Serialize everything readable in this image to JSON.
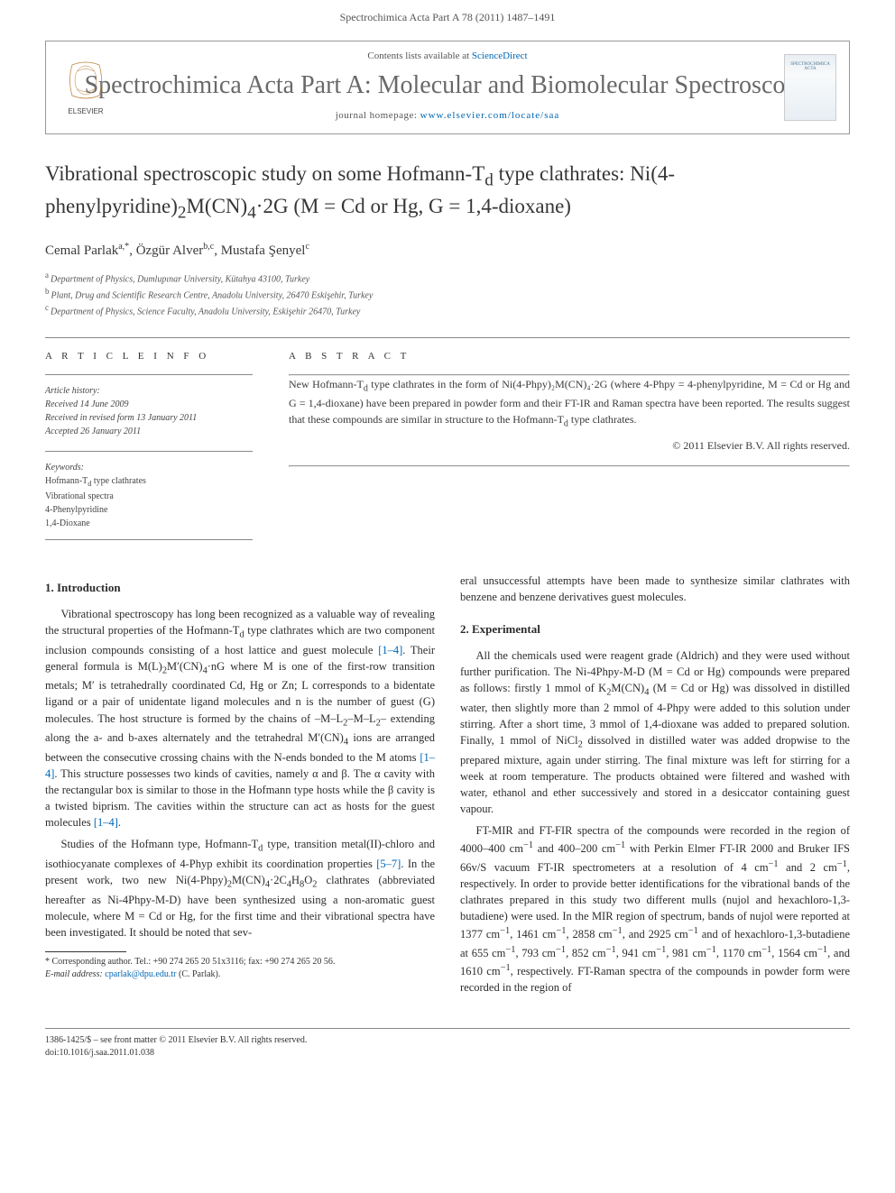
{
  "header": {
    "running_head": "Spectrochimica Acta Part A 78 (2011) 1487–1491"
  },
  "masthead": {
    "contents_line_prefix": "Contents lists available at ",
    "contents_link": "ScienceDirect",
    "journal_title": "Spectrochimica Acta Part A: Molecular and Biomolecular Spectroscopy",
    "homepage_prefix": "journal homepage: ",
    "homepage_url": "www.elsevier.com/locate/saa",
    "elsevier_label": "ELSEVIER",
    "cover_label": "SPECTROCHIMICA ACTA"
  },
  "article": {
    "title_html": "Vibrational spectroscopic study on some Hofmann-T<sub>d</sub> type clathrates: Ni(4-phenylpyridine)<sub>2</sub>M(CN)<sub>4</sub>·2G (M = Cd or Hg, G = 1,4-dioxane)",
    "authors": [
      {
        "name": "Cemal Parlak",
        "aff": "a,*"
      },
      {
        "name": "Özgür Alver",
        "aff": "b,c"
      },
      {
        "name": "Mustafa Şenyel",
        "aff": "c"
      }
    ],
    "affiliations": [
      {
        "label": "a",
        "text": "Department of Physics, Dumlupınar University, Kütahya 43100, Turkey"
      },
      {
        "label": "b",
        "text": "Plant, Drug and Scientific Research Centre, Anadolu University, 26470 Eskişehir, Turkey"
      },
      {
        "label": "c",
        "text": "Department of Physics, Science Faculty, Anadolu University, Eskişehir 26470, Turkey"
      }
    ]
  },
  "info": {
    "article_info_heading": "A R T I C L E   I N F O",
    "history_heading": "Article history:",
    "history": {
      "received": "Received 14 June 2009",
      "revised": "Received in revised form 13 January 2011",
      "accepted": "Accepted 26 January 2011"
    },
    "keywords_heading": "Keywords:",
    "keywords": [
      "Hofmann-T_d type clathrates",
      "Vibrational spectra",
      "4-Phenylpyridine",
      "1,4-Dioxane"
    ]
  },
  "abstract": {
    "heading": "A B S T R A C T",
    "text": "New Hofmann-T_d type clathrates in the form of Ni(4-Phpy)₂M(CN)₄·2G (where 4-Phpy = 4-phenylpyridine, M = Cd or Hg and G = 1,4-dioxane) have been prepared in powder form and their FT-IR and Raman spectra have been reported. The results suggest that these compounds are similar in structure to the Hofmann-T_d type clathrates.",
    "copyright": "© 2011 Elsevier B.V. All rights reserved."
  },
  "sections": {
    "intro_heading": "1.  Introduction",
    "intro_p1": "Vibrational spectroscopy has long been recognized as a valuable way of revealing the structural properties of the Hofmann-T_d type clathrates which are two component inclusion compounds consisting of a host lattice and guest molecule [1–4]. Their general formula is M(L)₂M′(CN)₄·nG where M is one of the first-row transition metals; M′ is tetrahedrally coordinated Cd, Hg or Zn; L corresponds to a bidentate ligand or a pair of unidentate ligand molecules and n is the number of guest (G) molecules. The host structure is formed by the chains of –M–L₂–M–L₂– extending along the a- and b-axes alternately and the tetrahedral M′(CN)₄ ions are arranged between the consecutive crossing chains with the N-ends bonded to the M atoms [1–4]. This structure possesses two kinds of cavities, namely α and β. The α cavity with the rectangular box is similar to those in the Hofmann type hosts while the β cavity is a twisted biprism. The cavities within the structure can act as hosts for the guest molecules [1–4].",
    "intro_p2": "Studies of the Hofmann type, Hofmann-T_d type, transition metal(II)-chloro and isothiocyanate complexes of 4-Phyp exhibit its coordination properties [5–7]. In the present work, two new Ni(4-Phpy)₂M(CN)₄·2C₄H₈O₂ clathrates (abbreviated hereafter as Ni-4Phpy-M-D) have been synthesized using a non-aromatic guest molecule, where M = Cd or Hg, for the first time and their vibrational spectra have been investigated. It should be noted that sev-",
    "col2_lead": "eral unsuccessful attempts have been made to synthesize similar clathrates with benzene and benzene derivatives guest molecules.",
    "exp_heading": "2.  Experimental",
    "exp_p1": "All the chemicals used were reagent grade (Aldrich) and they were used without further purification. The Ni-4Phpy-M-D (M = Cd or Hg) compounds were prepared as follows: firstly 1 mmol of K₂M(CN)₄ (M = Cd or Hg) was dissolved in distilled water, then slightly more than 2 mmol of 4-Phpy were added to this solution under stirring. After a short time, 3 mmol of 1,4-dioxane was added to prepared solution. Finally, 1 mmol of NiCl₂ dissolved in distilled water was added dropwise to the prepared mixture, again under stirring. The final mixture was left for stirring for a week at room temperature. The products obtained were filtered and washed with water, ethanol and ether successively and stored in a desiccator containing guest vapour.",
    "exp_p2": "FT-MIR and FT-FIR spectra of the compounds were recorded in the region of 4000–400 cm⁻¹ and 400–200 cm⁻¹ with Perkin Elmer FT-IR 2000 and Bruker IFS 66v/S vacuum FT-IR spectrometers at a resolution of 4 cm⁻¹ and 2 cm⁻¹, respectively. In order to provide better identifications for the vibrational bands of the clathrates prepared in this study two different mulls (nujol and hexachloro-1,3-butadiene) were used. In the MIR region of spectrum, bands of nujol were reported at 1377 cm⁻¹, 1461 cm⁻¹, 2858 cm⁻¹, and 2925 cm⁻¹ and of hexachloro-1,3-butadiene at 655 cm⁻¹, 793 cm⁻¹, 852 cm⁻¹, 941 cm⁻¹, 981 cm⁻¹, 1170 cm⁻¹, 1564 cm⁻¹, and 1610 cm⁻¹, respectively. FT-Raman spectra of the compounds in powder form were recorded in the region of"
  },
  "footnote": {
    "corresponding": "* Corresponding author. Tel.: +90 274 265 20 51x3116; fax: +90 274 265 20 56.",
    "email_label": "E-mail address: ",
    "email": "cparlak@dpu.edu.tr",
    "email_tail": " (C. Parlak)."
  },
  "footer": {
    "issn_line": "1386-1425/$ – see front matter © 2011 Elsevier B.V. All rights reserved.",
    "doi_line": "doi:10.1016/j.saa.2011.01.038"
  },
  "refs": {
    "r1_4": "[1–4]",
    "r5_7": "[5–7]"
  }
}
